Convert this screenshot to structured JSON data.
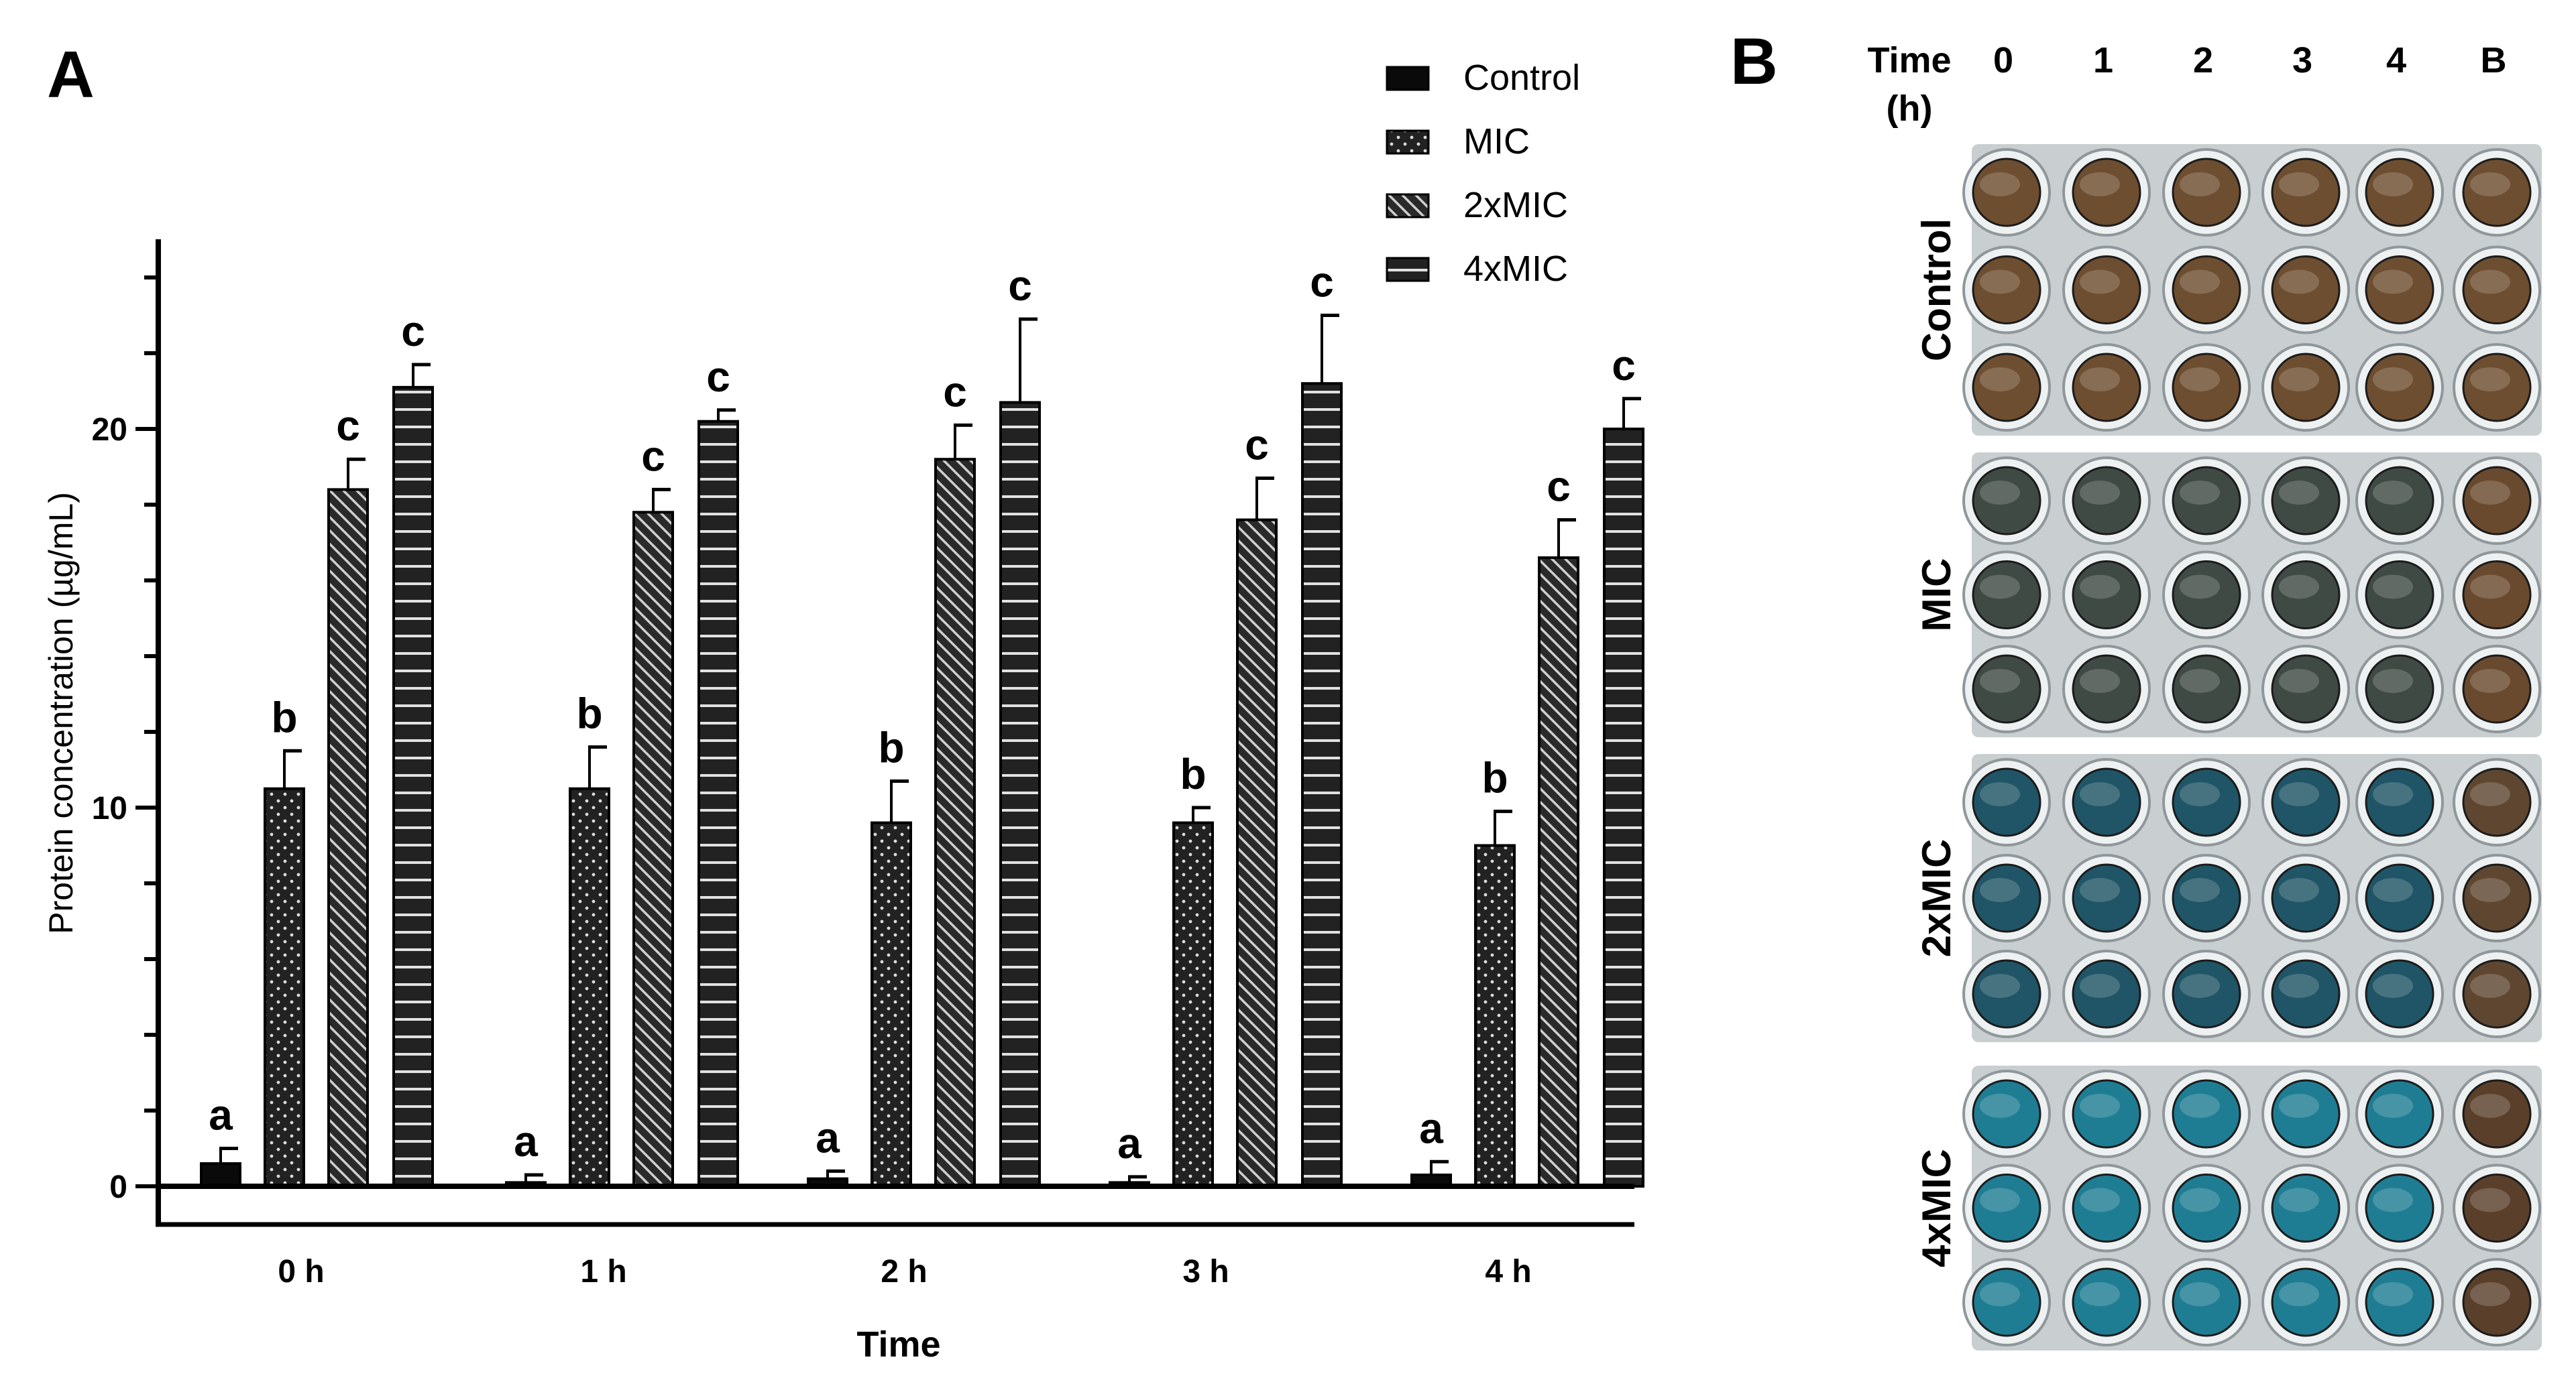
{
  "chart_data": {
    "type": "bar",
    "panel_label": "A",
    "xlabel": "Time",
    "ylabel": "Protein concentration (µg/mL)",
    "ylim": [
      0,
      25
    ],
    "yticks": [
      0,
      10,
      20
    ],
    "categories": [
      "0 h",
      "1 h",
      "2 h",
      "3 h",
      "4 h"
    ],
    "legend_position": "top-right",
    "series": [
      {
        "name": "Control",
        "pattern": "solid",
        "values": [
          0.6,
          0.1,
          0.2,
          0.1,
          0.3
        ],
        "errors": [
          0.4,
          0.2,
          0.2,
          0.15,
          0.35
        ],
        "labels": [
          "a",
          "a",
          "a",
          "a",
          "a"
        ]
      },
      {
        "name": "MIC",
        "pattern": "dots",
        "values": [
          10.5,
          10.5,
          9.6,
          9.6,
          9.0
        ],
        "errors": [
          1.0,
          1.1,
          1.1,
          0.4,
          0.9
        ],
        "labels": [
          "b",
          "b",
          "b",
          "b",
          "b"
        ]
      },
      {
        "name": "2xMIC",
        "pattern": "diagonal",
        "values": [
          18.4,
          17.8,
          19.2,
          17.6,
          16.6
        ],
        "errors": [
          0.8,
          0.6,
          0.9,
          1.1,
          1.0
        ],
        "labels": [
          "c",
          "c",
          "c",
          "c",
          "c"
        ]
      },
      {
        "name": "4xMIC",
        "pattern": "horizontal",
        "values": [
          21.1,
          20.2,
          20.7,
          21.2,
          20.0
        ],
        "errors": [
          0.6,
          0.3,
          2.2,
          1.8,
          0.8
        ],
        "labels": [
          "c",
          "c",
          "c",
          "c",
          "c"
        ]
      }
    ]
  },
  "panel_b": {
    "panel_label": "B",
    "time_header": [
      "Time",
      "(h)"
    ],
    "columns": [
      "0",
      "1",
      "2",
      "3",
      "4",
      "B"
    ],
    "rows": [
      {
        "name": "Control",
        "well_color": "#6e4e30",
        "blank_color": "#6e4e30"
      },
      {
        "name": "MIC",
        "well_color": "#3f4a44",
        "blank_color": "#6a4a2e"
      },
      {
        "name": "2xMIC",
        "well_color": "#1f5566",
        "blank_color": "#5e4630"
      },
      {
        "name": "4xMIC",
        "well_color": "#1f7d93",
        "blank_color": "#5a3f2a"
      }
    ]
  }
}
